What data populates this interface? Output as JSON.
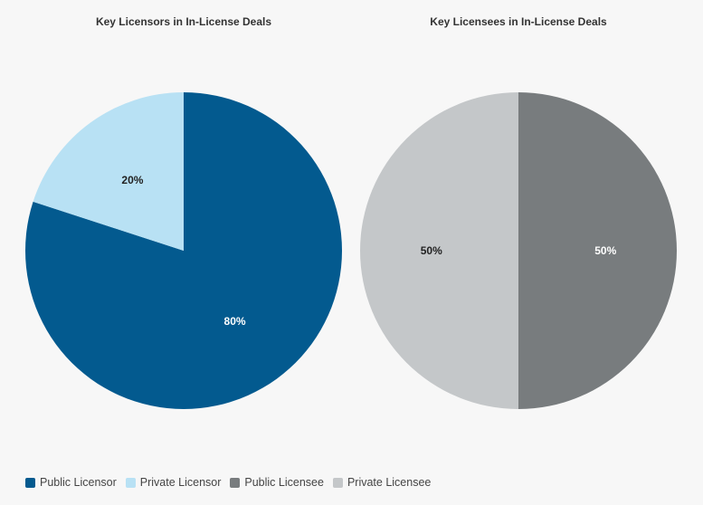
{
  "chart_data": [
    {
      "type": "pie",
      "title": "Key Licensors in In-License Deals",
      "slices": [
        {
          "name": "Public Licensor",
          "value": 80,
          "label": "80%",
          "color": "#035a8f",
          "label_color": "#ffffff"
        },
        {
          "name": "Private Licensor",
          "value": 20,
          "label": "20%",
          "color": "#b8e1f4",
          "label_color": "#222222"
        }
      ]
    },
    {
      "type": "pie",
      "title": "Key Licensees in In-License Deals",
      "slices": [
        {
          "name": "Public Licensee",
          "value": 50,
          "label": "50%",
          "color": "#787c7e",
          "label_color": "#ffffff"
        },
        {
          "name": "Private Licensee",
          "value": 50,
          "label": "50%",
          "color": "#c4c7c9",
          "label_color": "#222222"
        }
      ]
    }
  ],
  "legend": [
    {
      "label": "Public Licensor",
      "color": "#035a8f"
    },
    {
      "label": "Private Licensor",
      "color": "#b8e1f4"
    },
    {
      "label": "Public Licensee",
      "color": "#787c7e"
    },
    {
      "label": "Private Licensee",
      "color": "#c4c7c9"
    }
  ],
  "legend_position": "bottom-left"
}
